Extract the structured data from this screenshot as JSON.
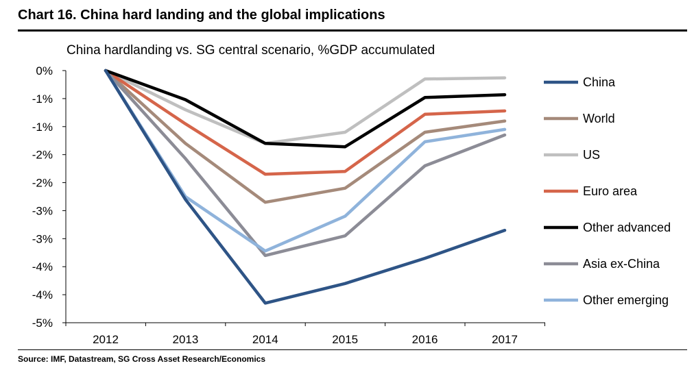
{
  "header": {
    "title": "Chart 16. China hard landing and the global implications",
    "subtitle": "China hardlanding vs. SG central scenario, %GDP accumulated"
  },
  "footer": {
    "source": "Source: IMF, Datastream, SG Cross Asset Research/Economics"
  },
  "chart_data": {
    "type": "line",
    "title": "China hardlanding vs. SG central scenario, %GDP accumulated",
    "xlabel": "",
    "ylabel": "",
    "x": [
      "2012",
      "2013",
      "2014",
      "2015",
      "2016",
      "2017"
    ],
    "ylim": [
      -4.5,
      0
    ],
    "y_ticks": [
      0,
      -0.5,
      -1,
      -1.5,
      -2,
      -2.5,
      -3,
      -3.5,
      -4,
      -4.5
    ],
    "y_tick_labels": [
      "0%",
      "-1%",
      "-1%",
      "-2%",
      "-2%",
      "-3%",
      "-3%",
      "-4%",
      "-4%",
      "-5%"
    ],
    "grid": false,
    "legend_position": "right",
    "series": [
      {
        "name": "China",
        "color": "#2e5486",
        "values": [
          0,
          -2.3,
          -4.15,
          -3.8,
          -3.35,
          -2.85
        ]
      },
      {
        "name": "World",
        "color": "#a58a7a",
        "values": [
          0,
          -1.3,
          -2.35,
          -2.1,
          -1.1,
          -0.9
        ]
      },
      {
        "name": "US",
        "color": "#bfbfbf",
        "values": [
          0,
          -0.7,
          -1.3,
          -1.1,
          -0.15,
          -0.13
        ]
      },
      {
        "name": "Euro area",
        "color": "#d5654a",
        "values": [
          0,
          -0.95,
          -1.85,
          -1.8,
          -0.78,
          -0.72
        ]
      },
      {
        "name": "Other advanced",
        "color": "#000000",
        "values": [
          0,
          -0.52,
          -1.3,
          -1.36,
          -0.48,
          -0.43
        ]
      },
      {
        "name": "Asia ex-China",
        "color": "#8c8c96",
        "values": [
          0,
          -1.57,
          -3.3,
          -2.95,
          -1.7,
          -1.15
        ]
      },
      {
        "name": "Other emerging",
        "color": "#8fb3db",
        "values": [
          0,
          -2.25,
          -3.22,
          -2.6,
          -1.27,
          -1.05
        ]
      }
    ]
  }
}
